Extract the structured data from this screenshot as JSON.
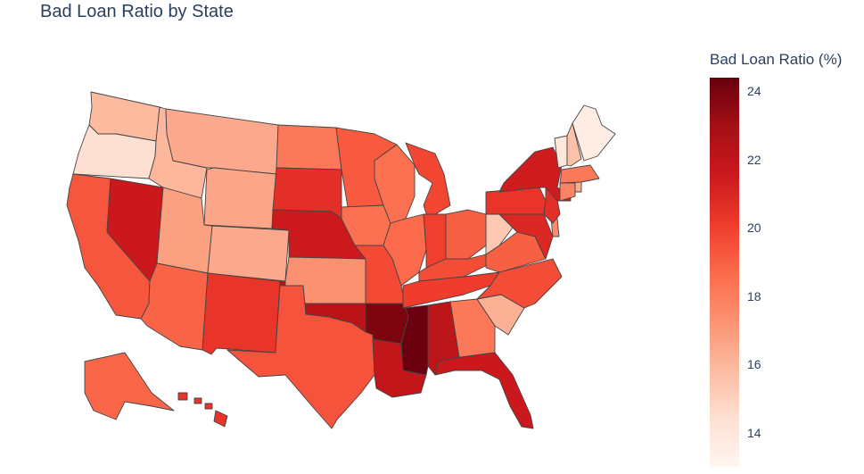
{
  "chart_data": {
    "type": "choropleth",
    "title": "Bad Loan Ratio by State",
    "colorbar": {
      "title": "Bad Loan Ratio (%)",
      "range": [
        13.0,
        24.4
      ],
      "ticks": [
        14,
        16,
        18,
        20,
        22,
        24
      ],
      "colorscale": "Reds"
    },
    "states": {
      "AL": 22.1,
      "AK": 18.8,
      "AZ": 18.9,
      "AR": 23.9,
      "CA": 19.3,
      "CO": 16.5,
      "CT": 17.8,
      "DE": 17.5,
      "FL": 21.6,
      "GA": 18.2,
      "HI": 20.4,
      "ID": 16.0,
      "IL": 18.7,
      "IN": 20.0,
      "IA": 18.5,
      "KS": 17.3,
      "KY": 19.6,
      "LA": 21.9,
      "ME": 13.6,
      "MD": 20.9,
      "MA": 18.2,
      "MI": 19.8,
      "MN": 19.2,
      "MS": 24.3,
      "MO": 19.7,
      "MT": 16.5,
      "NE": 21.5,
      "NV": 21.6,
      "NH": 15.6,
      "NJ": 20.6,
      "NM": 20.4,
      "NY": 21.4,
      "NC": 19.6,
      "ND": 18.2,
      "OH": 19.0,
      "OK": 22.2,
      "OR": 14.4,
      "PA": 20.4,
      "RI": 16.4,
      "SC": 16.2,
      "SD": 20.6,
      "TN": 20.1,
      "TX": 19.4,
      "UT": 16.8,
      "VT": 14.0,
      "VA": 19.0,
      "WA": 15.9,
      "WV": 15.3,
      "WI": 18.5,
      "WY": 16.6
    }
  }
}
